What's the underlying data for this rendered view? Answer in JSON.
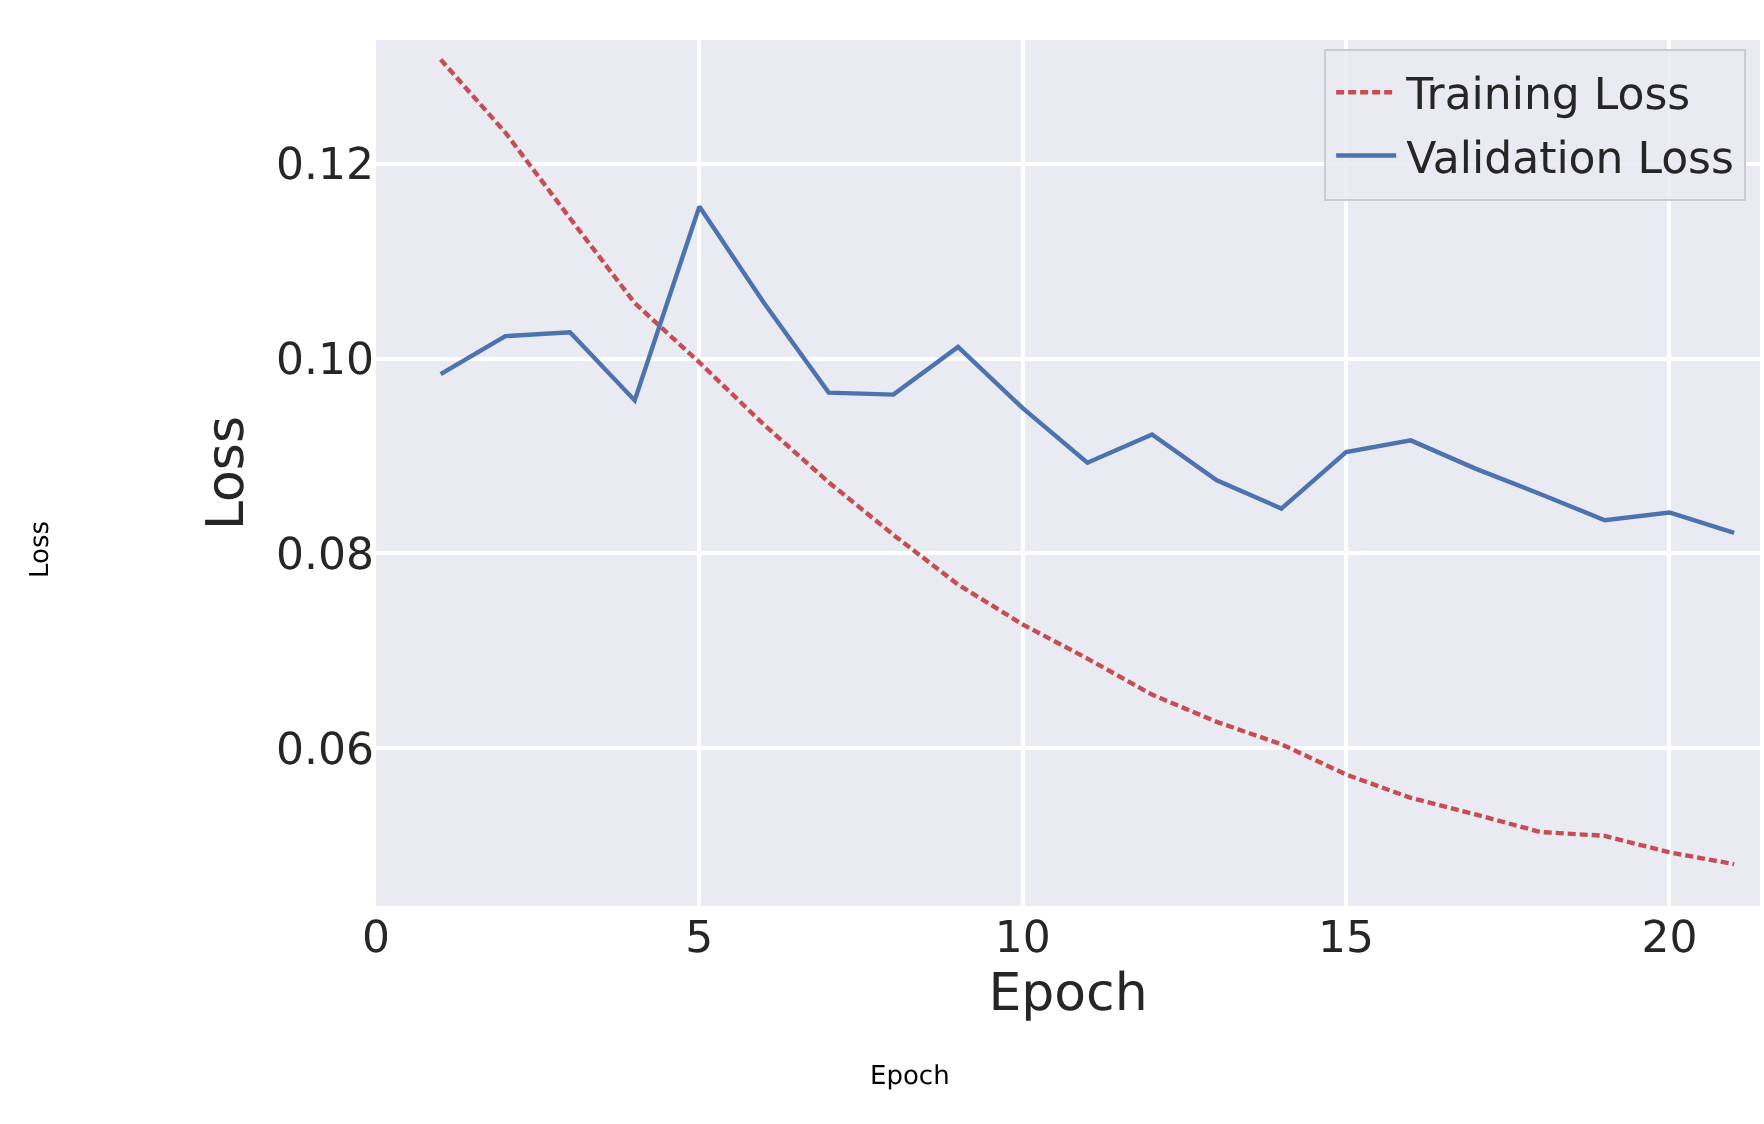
{
  "chart_data": {
    "type": "line",
    "xlabel": "Epoch",
    "ylabel": "Loss",
    "x": [
      1,
      2,
      3,
      4,
      5,
      6,
      7,
      8,
      9,
      10,
      11,
      12,
      13,
      14,
      15,
      16,
      17,
      18,
      19,
      20,
      21
    ],
    "series": [
      {
        "name": "Training Loss",
        "color": "#c44e52",
        "line_style": "dashed",
        "values": [
          0.1307,
          0.1232,
          0.1144,
          0.1057,
          0.0996,
          0.0932,
          0.0873,
          0.0819,
          0.0768,
          0.0727,
          0.0692,
          0.0655,
          0.0627,
          0.0604,
          0.0573,
          0.0549,
          0.0532,
          0.0514,
          0.051,
          0.0493,
          0.0481
        ]
      },
      {
        "name": "Validation Loss",
        "color": "#4c72b0",
        "line_style": "solid",
        "values": [
          0.0984,
          0.1023,
          0.1027,
          0.0957,
          0.1156,
          0.1057,
          0.0965,
          0.0963,
          0.1012,
          0.0949,
          0.0893,
          0.0922,
          0.0875,
          0.0846,
          0.0904,
          0.0916,
          0.0887,
          0.0861,
          0.0834,
          0.0842,
          0.0821
        ]
      }
    ],
    "xlim": [
      0,
      21.4
    ],
    "ylim": [
      0.0438,
      0.1327
    ],
    "xticks": [
      0,
      5,
      10,
      15,
      20
    ],
    "yticks": [
      0.06,
      0.08,
      {
        "value": 0.1,
        "label": "0.10"
      },
      0.12
    ],
    "grid": true,
    "legend": "top right",
    "marker": "none",
    "annotations": [
      "Loss",
      "Epoch"
    ]
  }
}
